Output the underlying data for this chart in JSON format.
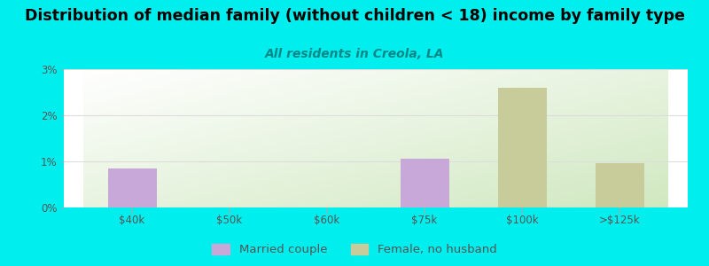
{
  "title": "Distribution of median family (without children < 18) income by family type",
  "subtitle": "All residents in Creola, LA",
  "background_color": "#00EEEE",
  "plot_bg_top_left": "#c8ddb8",
  "plot_bg_bottom_right": "#ffffff",
  "categories": [
    "$40k",
    "$50k",
    "$60k",
    "$75k",
    "$100k",
    ">$125k"
  ],
  "married_couple": [
    0.85,
    0.0,
    0.0,
    1.05,
    0.0,
    0.0
  ],
  "female_no_husband": [
    0.0,
    0.0,
    0.0,
    0.0,
    2.6,
    0.97
  ],
  "married_color": "#c8a8d8",
  "female_color": "#c8cc9a",
  "ylim": [
    0,
    3.0
  ],
  "yticks": [
    0,
    1,
    2,
    3
  ],
  "ytick_labels": [
    "0%",
    "1%",
    "2%",
    "3%"
  ],
  "bar_width": 0.5,
  "title_fontsize": 12.5,
  "subtitle_fontsize": 10,
  "legend_fontsize": 9.5,
  "tick_fontsize": 8.5,
  "subtitle_color": "#008888",
  "grid_color": "#dddddd"
}
